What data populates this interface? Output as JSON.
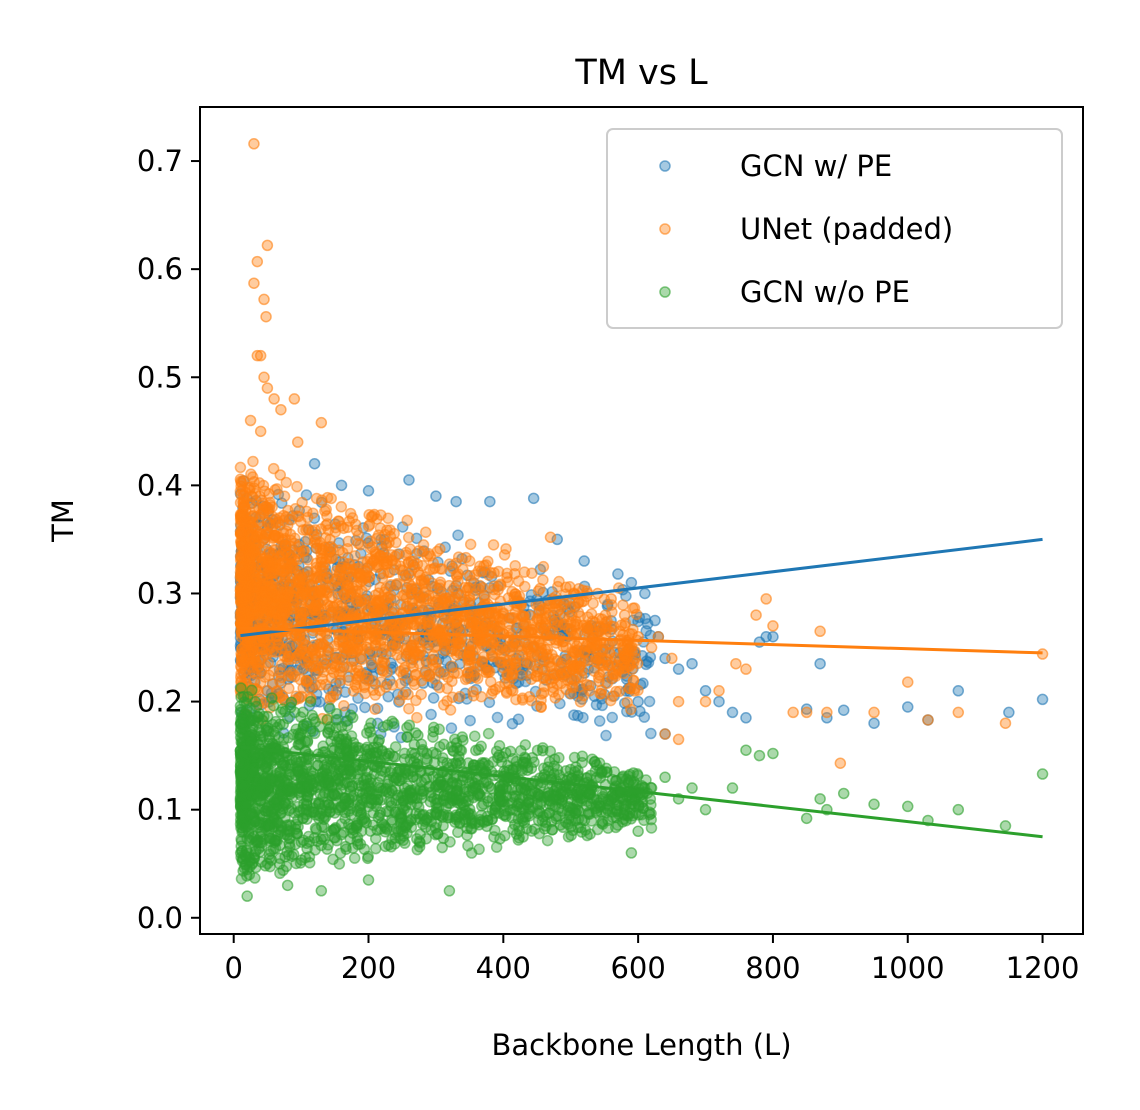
{
  "chart_data": {
    "type": "scatter",
    "title": "TM vs L",
    "xlabel": "Backbone Length (L)",
    "ylabel": "TM",
    "xlim": [
      -50,
      1260
    ],
    "ylim": [
      -0.015,
      0.75
    ],
    "xticks": [
      0,
      200,
      400,
      600,
      800,
      1000,
      1200
    ],
    "yticks": [
      0.0,
      0.1,
      0.2,
      0.3,
      0.4,
      0.5,
      0.6,
      0.7
    ],
    "xtick_labels": [
      "0",
      "200",
      "400",
      "600",
      "800",
      "1000",
      "1200"
    ],
    "ytick_labels": [
      "0.0",
      "0.1",
      "0.2",
      "0.3",
      "0.4",
      "0.5",
      "0.6",
      "0.7"
    ],
    "grid": false,
    "legend_position": "upper right",
    "series": [
      {
        "name": "GCN w/ PE",
        "color": "#1f77b4",
        "cloud": {
          "x_range": [
            10,
            620
          ],
          "y_low_start": 0.17,
          "y_low_end": 0.16,
          "y_high_start": 0.41,
          "y_high_end": 0.31,
          "count": 900
        },
        "outliers": [
          [
            120,
            0.42
          ],
          [
            160,
            0.4
          ],
          [
            200,
            0.395
          ],
          [
            260,
            0.405
          ],
          [
            300,
            0.39
          ],
          [
            330,
            0.385
          ],
          [
            380,
            0.385
          ],
          [
            445,
            0.388
          ],
          [
            480,
            0.35
          ],
          [
            520,
            0.33
          ],
          [
            570,
            0.318
          ],
          [
            590,
            0.31
          ],
          [
            610,
            0.3
          ],
          [
            625,
            0.275
          ],
          [
            630,
            0.26
          ],
          [
            640,
            0.24
          ],
          [
            660,
            0.23
          ],
          [
            680,
            0.235
          ],
          [
            700,
            0.21
          ],
          [
            720,
            0.2
          ],
          [
            740,
            0.19
          ],
          [
            760,
            0.185
          ],
          [
            780,
            0.255
          ],
          [
            790,
            0.26
          ],
          [
            800,
            0.26
          ],
          [
            850,
            0.193
          ],
          [
            870,
            0.235
          ],
          [
            880,
            0.185
          ],
          [
            905,
            0.192
          ],
          [
            950,
            0.18
          ],
          [
            1000,
            0.195
          ],
          [
            1030,
            0.183
          ],
          [
            1075,
            0.21
          ],
          [
            1150,
            0.19
          ],
          [
            1200,
            0.202
          ],
          [
            640,
            0.17
          ],
          [
            600,
            0.2
          ]
        ],
        "trend": {
          "x": [
            10,
            1200
          ],
          "y": [
            0.261,
            0.35
          ]
        }
      },
      {
        "name": "UNet (padded)",
        "color": "#ff7f0e",
        "cloud": {
          "x_range": [
            10,
            600
          ],
          "y_low_start": 0.18,
          "y_low_end": 0.19,
          "y_high_start": 0.43,
          "y_high_end": 0.3,
          "count": 2200
        },
        "outliers": [
          [
            30,
            0.716
          ],
          [
            50,
            0.622
          ],
          [
            35,
            0.607
          ],
          [
            45,
            0.572
          ],
          [
            48,
            0.556
          ],
          [
            30,
            0.587
          ],
          [
            40,
            0.52
          ],
          [
            35,
            0.52
          ],
          [
            45,
            0.5
          ],
          [
            50,
            0.49
          ],
          [
            60,
            0.48
          ],
          [
            70,
            0.47
          ],
          [
            90,
            0.48
          ],
          [
            95,
            0.44
          ],
          [
            130,
            0.458
          ],
          [
            25,
            0.46
          ],
          [
            40,
            0.45
          ],
          [
            470,
            0.352
          ],
          [
            540,
            0.3
          ],
          [
            560,
            0.295
          ],
          [
            580,
            0.28
          ],
          [
            600,
            0.26
          ],
          [
            620,
            0.25
          ],
          [
            630,
            0.26
          ],
          [
            650,
            0.24
          ],
          [
            660,
            0.2
          ],
          [
            700,
            0.2
          ],
          [
            720,
            0.21
          ],
          [
            745,
            0.235
          ],
          [
            760,
            0.23
          ],
          [
            775,
            0.28
          ],
          [
            790,
            0.295
          ],
          [
            800,
            0.27
          ],
          [
            830,
            0.19
          ],
          [
            850,
            0.19
          ],
          [
            870,
            0.265
          ],
          [
            880,
            0.19
          ],
          [
            900,
            0.143
          ],
          [
            950,
            0.19
          ],
          [
            1000,
            0.218
          ],
          [
            1030,
            0.183
          ],
          [
            1075,
            0.19
          ],
          [
            1145,
            0.18
          ],
          [
            1200,
            0.244
          ],
          [
            640,
            0.17
          ],
          [
            660,
            0.165
          ]
        ],
        "trend": {
          "x": [
            10,
            1200
          ],
          "y": [
            0.268,
            0.245
          ]
        }
      },
      {
        "name": "GCN w/o PE",
        "color": "#2ca02c",
        "cloud": {
          "x_range": [
            10,
            620
          ],
          "y_low_start": 0.03,
          "y_low_end": 0.08,
          "y_high_start": 0.22,
          "y_high_end": 0.14,
          "count": 2000
        },
        "outliers": [
          [
            20,
            0.02
          ],
          [
            80,
            0.03
          ],
          [
            130,
            0.025
          ],
          [
            200,
            0.035
          ],
          [
            320,
            0.025
          ],
          [
            590,
            0.06
          ],
          [
            620,
            0.12
          ],
          [
            640,
            0.13
          ],
          [
            660,
            0.11
          ],
          [
            680,
            0.12
          ],
          [
            700,
            0.1
          ],
          [
            740,
            0.12
          ],
          [
            760,
            0.155
          ],
          [
            780,
            0.15
          ],
          [
            800,
            0.152
          ],
          [
            850,
            0.092
          ],
          [
            870,
            0.11
          ],
          [
            880,
            0.1
          ],
          [
            905,
            0.115
          ],
          [
            950,
            0.105
          ],
          [
            1000,
            0.103
          ],
          [
            1030,
            0.09
          ],
          [
            1075,
            0.1
          ],
          [
            1145,
            0.085
          ],
          [
            1200,
            0.133
          ],
          [
            600,
            0.08
          ],
          [
            580,
            0.1
          ]
        ],
        "trend": {
          "x": [
            10,
            1200
          ],
          "y": [
            0.158,
            0.075
          ]
        }
      }
    ]
  }
}
